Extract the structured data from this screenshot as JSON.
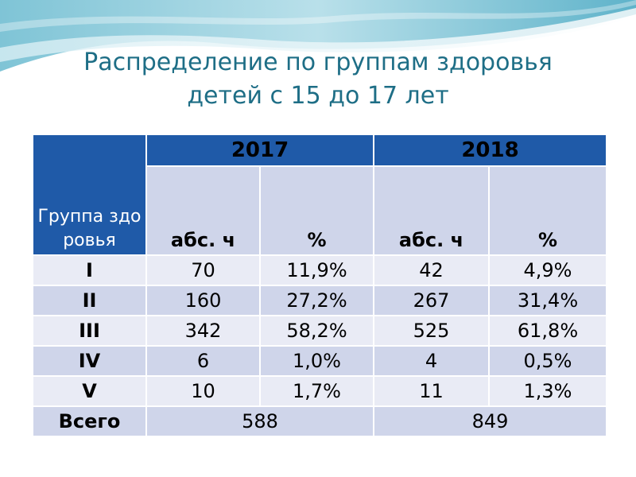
{
  "slide": {
    "title_line1": "Распределение по группам здоровья",
    "title_line2": "детей с 15 до 17 лет"
  },
  "table": {
    "group_header": "Группа здоровья",
    "years": [
      "2017",
      "2018"
    ],
    "sub_headers": [
      "абс. ч",
      "%",
      "абс. ч",
      "%"
    ],
    "rows": [
      {
        "label": "I",
        "cells": [
          "70",
          "11,9%",
          "42",
          "4,9%"
        ]
      },
      {
        "label": "II",
        "cells": [
          "160",
          "27,2%",
          "267",
          "31,4%"
        ]
      },
      {
        "label": "III",
        "cells": [
          "342",
          "58,2%",
          "525",
          "61,8%"
        ]
      },
      {
        "label": "IV",
        "cells": [
          "6",
          "1,0%",
          "4",
          "0,5%"
        ]
      },
      {
        "label": "V",
        "cells": [
          "10",
          "1,7%",
          "11",
          "1,3%"
        ]
      }
    ],
    "total": {
      "label": "Всего",
      "values": [
        "588",
        "849"
      ]
    }
  },
  "colors": {
    "header_blue": "#1f5aa8",
    "row_light": "#e9ebf5",
    "row_dark": "#cfd5ea",
    "title_teal": "#1e6e86"
  }
}
